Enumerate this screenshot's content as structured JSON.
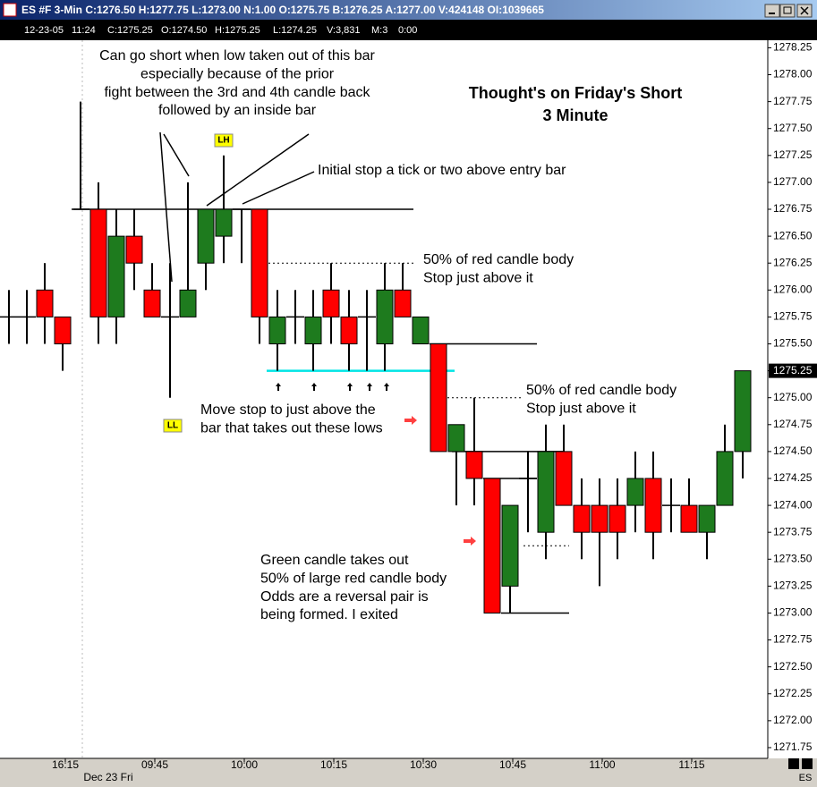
{
  "window": {
    "title": "ES #F 3-Min C:1276.50 H:1277.75 L:1273.00 N:1.00 O:1275.75 B:1276.25 A:1277.00 V:424148 OI:1039665",
    "info_bar": [
      "12-23-05",
      "11:24",
      "C:1275.25",
      "O:1274.50",
      "H:1275.25",
      "L:1274.25",
      "V:3,831",
      "M:3",
      "0:00"
    ],
    "symbol_label": "ES"
  },
  "chart_data": {
    "type": "candlestick",
    "title": "Thought's on Friday's Short",
    "subtitle": "3 Minute",
    "date_label": "Dec 23 Fri",
    "categories": [
      null,
      null,
      null,
      "16:15",
      null,
      null,
      null,
      null,
      "09:45",
      null,
      null,
      null,
      null,
      "10:00",
      null,
      null,
      null,
      null,
      "10:15",
      null,
      null,
      null,
      null,
      "10:30",
      null,
      null,
      null,
      null,
      "10:45",
      null,
      null,
      null,
      null,
      "11:00",
      null,
      null,
      null,
      null,
      "11:15",
      null,
      null,
      null
    ],
    "series": [
      {
        "name": "ES #F",
        "up_color": "#1e7b1e",
        "down_color": "#ff0000",
        "open": [
          1275.75,
          1275.75,
          1276.0,
          1275.75,
          1276.75,
          1276.75,
          1275.75,
          1276.5,
          1276.0,
          1275.75,
          1275.75,
          1276.25,
          1276.5,
          1276.75,
          1276.75,
          1275.5,
          1275.75,
          1275.5,
          1276.0,
          1275.75,
          1275.75,
          1275.5,
          1276.0,
          1275.5,
          1275.5,
          1274.5,
          1274.5,
          1274.25,
          1273.25,
          1274.25,
          1273.75,
          1274.5,
          1274.0,
          1274.0,
          1274.0,
          1274.0,
          1274.25,
          1274.0,
          1274.0,
          1273.75,
          1274.0,
          1274.5
        ],
        "high": [
          1276.0,
          1276.0,
          1276.25,
          1275.75,
          1277.75,
          1277.0,
          1276.75,
          1276.75,
          1276.25,
          1276.25,
          1277.0,
          1276.75,
          1277.25,
          1276.75,
          1276.75,
          1276.0,
          1276.0,
          1276.0,
          1276.25,
          1276.0,
          1276.0,
          1276.25,
          1276.25,
          1275.75,
          1275.5,
          1274.75,
          1275.0,
          1274.25,
          1274.0,
          1274.5,
          1274.75,
          1274.75,
          1274.25,
          1274.25,
          1274.25,
          1274.5,
          1274.5,
          1274.25,
          1274.25,
          1274.0,
          1274.75,
          1275.25
        ],
        "low": [
          1275.5,
          1275.5,
          1275.5,
          1275.25,
          1276.75,
          1275.5,
          1275.5,
          1276.0,
          1275.75,
          1275.0,
          1275.75,
          1276.0,
          1276.25,
          1276.25,
          1275.5,
          1275.25,
          1275.5,
          1275.25,
          1275.5,
          1275.25,
          1275.25,
          1275.25,
          1275.75,
          1275.5,
          1274.5,
          1274.0,
          1274.0,
          1273.0,
          1273.0,
          1273.75,
          1273.5,
          1274.0,
          1273.5,
          1273.25,
          1273.5,
          1273.75,
          1273.5,
          1273.75,
          1273.75,
          1273.5,
          1274.0,
          1274.25
        ],
        "close": [
          1275.75,
          1275.75,
          1275.75,
          1275.5,
          1276.75,
          1275.75,
          1276.5,
          1276.25,
          1275.75,
          1275.75,
          1276.0,
          1276.75,
          1276.75,
          1276.75,
          1275.75,
          1275.75,
          1275.75,
          1275.75,
          1275.75,
          1275.5,
          1275.75,
          1276.0,
          1275.75,
          1275.75,
          1274.5,
          1274.75,
          1274.25,
          1273.0,
          1274.0,
          1274.25,
          1274.5,
          1274.0,
          1273.75,
          1273.75,
          1273.75,
          1274.25,
          1273.75,
          1274.0,
          1273.75,
          1274.0,
          1274.5,
          1275.25
        ]
      }
    ],
    "last_price": 1275.25,
    "levels": [
      {
        "value": 1276.75,
        "color": "#000000",
        "dashed": false
      },
      {
        "value": 1276.25,
        "color": "#000000",
        "dashed": true
      },
      {
        "value": 1275.5,
        "color": "#000000",
        "dashed": false
      },
      {
        "value": 1275.25,
        "color": "#00e5e5",
        "dashed": false
      },
      {
        "value": 1275.0,
        "color": "#000000",
        "dashed": true
      },
      {
        "value": 1274.5,
        "color": "#000000",
        "dashed": false
      },
      {
        "value": 1274.25,
        "color": "#000000",
        "dashed": false
      },
      {
        "value": 1273.625,
        "color": "#000000",
        "dashed": true
      },
      {
        "value": 1273.0,
        "color": "#000000",
        "dashed": false
      }
    ],
    "markers": [
      "LH",
      "LL"
    ],
    "annotations": [
      {
        "lines": [
          "Can go short when low taken out of this bar",
          "especially because of the prior",
          "fight between the 3rd and 4th candle back",
          "followed by an inside bar"
        ]
      },
      {
        "lines": [
          "Initial stop a tick or two above entry bar"
        ]
      },
      {
        "lines": [
          "50% of red candle body",
          "Stop just above it"
        ]
      },
      {
        "lines": [
          "50% of red candle body",
          "Stop just above it"
        ]
      },
      {
        "lines": [
          "Move stop to just above the",
          "bar that takes out these lows"
        ]
      },
      {
        "lines": [
          "Green candle takes out",
          "50% of large red candle body",
          "Odds are a reversal pair is",
          "being formed.  I exited"
        ]
      }
    ],
    "ylim": [
      1271.65,
      1278.32
    ],
    "yticks": [
      {
        "value": 1278.25,
        "label": "1278.25"
      },
      {
        "value": 1278,
        "label": "1278.00"
      },
      1277.75,
      {
        "value": 1277.5,
        "label": "1277.50"
      },
      1277.25,
      {
        "value": 1277,
        "label": "1277.00"
      },
      1276.75,
      {
        "value": 1276.5,
        "label": "1276.50"
      },
      1276.25,
      {
        "value": 1276,
        "label": "1276.00"
      },
      1275.75,
      {
        "value": 1275.5,
        "label": "1275.50"
      },
      1275.25,
      {
        "value": 1275,
        "label": "1275.00"
      },
      1274.75,
      {
        "value": 1274.5,
        "label": "1274.50"
      },
      1274.25,
      {
        "value": 1274,
        "label": "1274.00"
      },
      1273.75,
      {
        "value": 1273.5,
        "label": "1273.50"
      },
      1273.25,
      {
        "value": 1273,
        "label": "1273.00"
      },
      1272.75,
      {
        "value": 1272.5,
        "label": "1272.50"
      },
      1272.25,
      {
        "value": 1272,
        "label": "1272.00"
      },
      1271.75
    ]
  }
}
